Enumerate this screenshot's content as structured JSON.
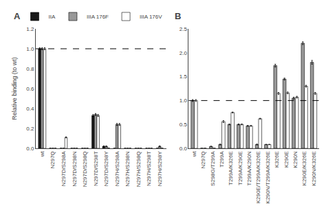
{
  "chart_data": [
    {
      "type": "bar",
      "title": "A",
      "ylabel": "Relative binding (to wt)",
      "categories": [
        "wt",
        "N297Q",
        "N297D/S298A",
        "N297D/S298N",
        "N297D/S298Q",
        "N297D/S298T",
        "N297D/S298Y",
        "N297H/S298A",
        "N297H/S298N",
        "N297H/S298Q",
        "N297H/S298T",
        "N297H/S298Y"
      ],
      "series": [
        {
          "name": "IIA",
          "color": "#1a1a1a",
          "values": [
            1.0,
            0.0,
            0.0,
            0.0,
            0.0,
            0.33,
            0.02,
            0.0,
            0.0,
            0.0,
            0.0,
            0.0
          ],
          "errors": [
            0.01,
            0.0,
            0.0,
            0.0,
            0.0,
            0.01,
            0.005,
            0.0,
            0.0,
            0.0,
            0.0,
            0.0
          ]
        },
        {
          "name": "IIIA 176F",
          "color": "#999999",
          "values": [
            1.0,
            0.0,
            0.0,
            0.0,
            0.0,
            0.34,
            0.02,
            0.24,
            0.0,
            0.0,
            0.0,
            0.02
          ],
          "errors": [
            0.01,
            0.0,
            0.0,
            0.0,
            0.0,
            0.01,
            0.005,
            0.01,
            0.0,
            0.0,
            0.0,
            0.005
          ]
        },
        {
          "name": "IIIA 176V",
          "color": "#ffffff",
          "values": [
            1.0,
            0.0,
            0.11,
            0.0,
            0.0,
            0.33,
            0.0,
            0.24,
            0.0,
            0.0,
            0.0,
            0.0
          ],
          "errors": [
            0.01,
            0.0,
            0.005,
            0.0,
            0.0,
            0.01,
            0.0,
            0.01,
            0.0,
            0.0,
            0.0,
            0.0
          ]
        }
      ],
      "hline": 1.0,
      "ylim": [
        0,
        1.2
      ],
      "yticks": [
        {
          "value": 0,
          "label": "0.0"
        },
        0.2,
        0.4,
        0.6,
        0.8,
        {
          "value": 1,
          "label": "1.0"
        },
        1.2
      ],
      "grid": false,
      "legend": "upper right"
    },
    {
      "type": "bar",
      "title": "B",
      "categories": [
        "wt",
        "N297Q",
        "S298G/T299A",
        "T299A",
        "T299A/K326E",
        "T299A/K290E",
        "T299A/K290N",
        "K290E/T299A/K326E",
        "K290N/T299A/K326E",
        "K326E",
        "K290E",
        "K290N",
        "K290E/K326E",
        "K290N/K326E"
      ],
      "series": [
        {
          "name": "IIIA 176F",
          "color": "#999999",
          "values": [
            1.0,
            0.0,
            0.04,
            0.08,
            0.5,
            0.5,
            0.47,
            0.08,
            0.08,
            1.73,
            1.45,
            1.05,
            2.2,
            1.8
          ],
          "errors": [
            0.02,
            0.0,
            0.005,
            0.01,
            0.01,
            0.01,
            0.01,
            0.01,
            0.005,
            0.03,
            0.02,
            0.02,
            0.03,
            0.04
          ]
        },
        {
          "name": "IIIA 176V",
          "color": "#ffffff",
          "values": [
            1.0,
            0.0,
            0.0,
            0.56,
            0.75,
            0.5,
            0.47,
            0.62,
            0.08,
            1.15,
            1.16,
            1.07,
            1.3,
            1.15
          ],
          "errors": [
            0.02,
            0.0,
            0.0,
            0.02,
            0.01,
            0.01,
            0.01,
            0.01,
            0.005,
            0.02,
            0.02,
            0.02,
            0.02,
            0.02
          ]
        }
      ],
      "hline": 1.0,
      "ylim": [
        0,
        2.5
      ],
      "yticks": [
        {
          "value": 0,
          "label": "0.0"
        },
        0.5,
        {
          "value": 1,
          "label": "1.0"
        },
        1.5,
        {
          "value": 2,
          "label": "2.0"
        },
        2.5
      ],
      "grid": false
    }
  ]
}
